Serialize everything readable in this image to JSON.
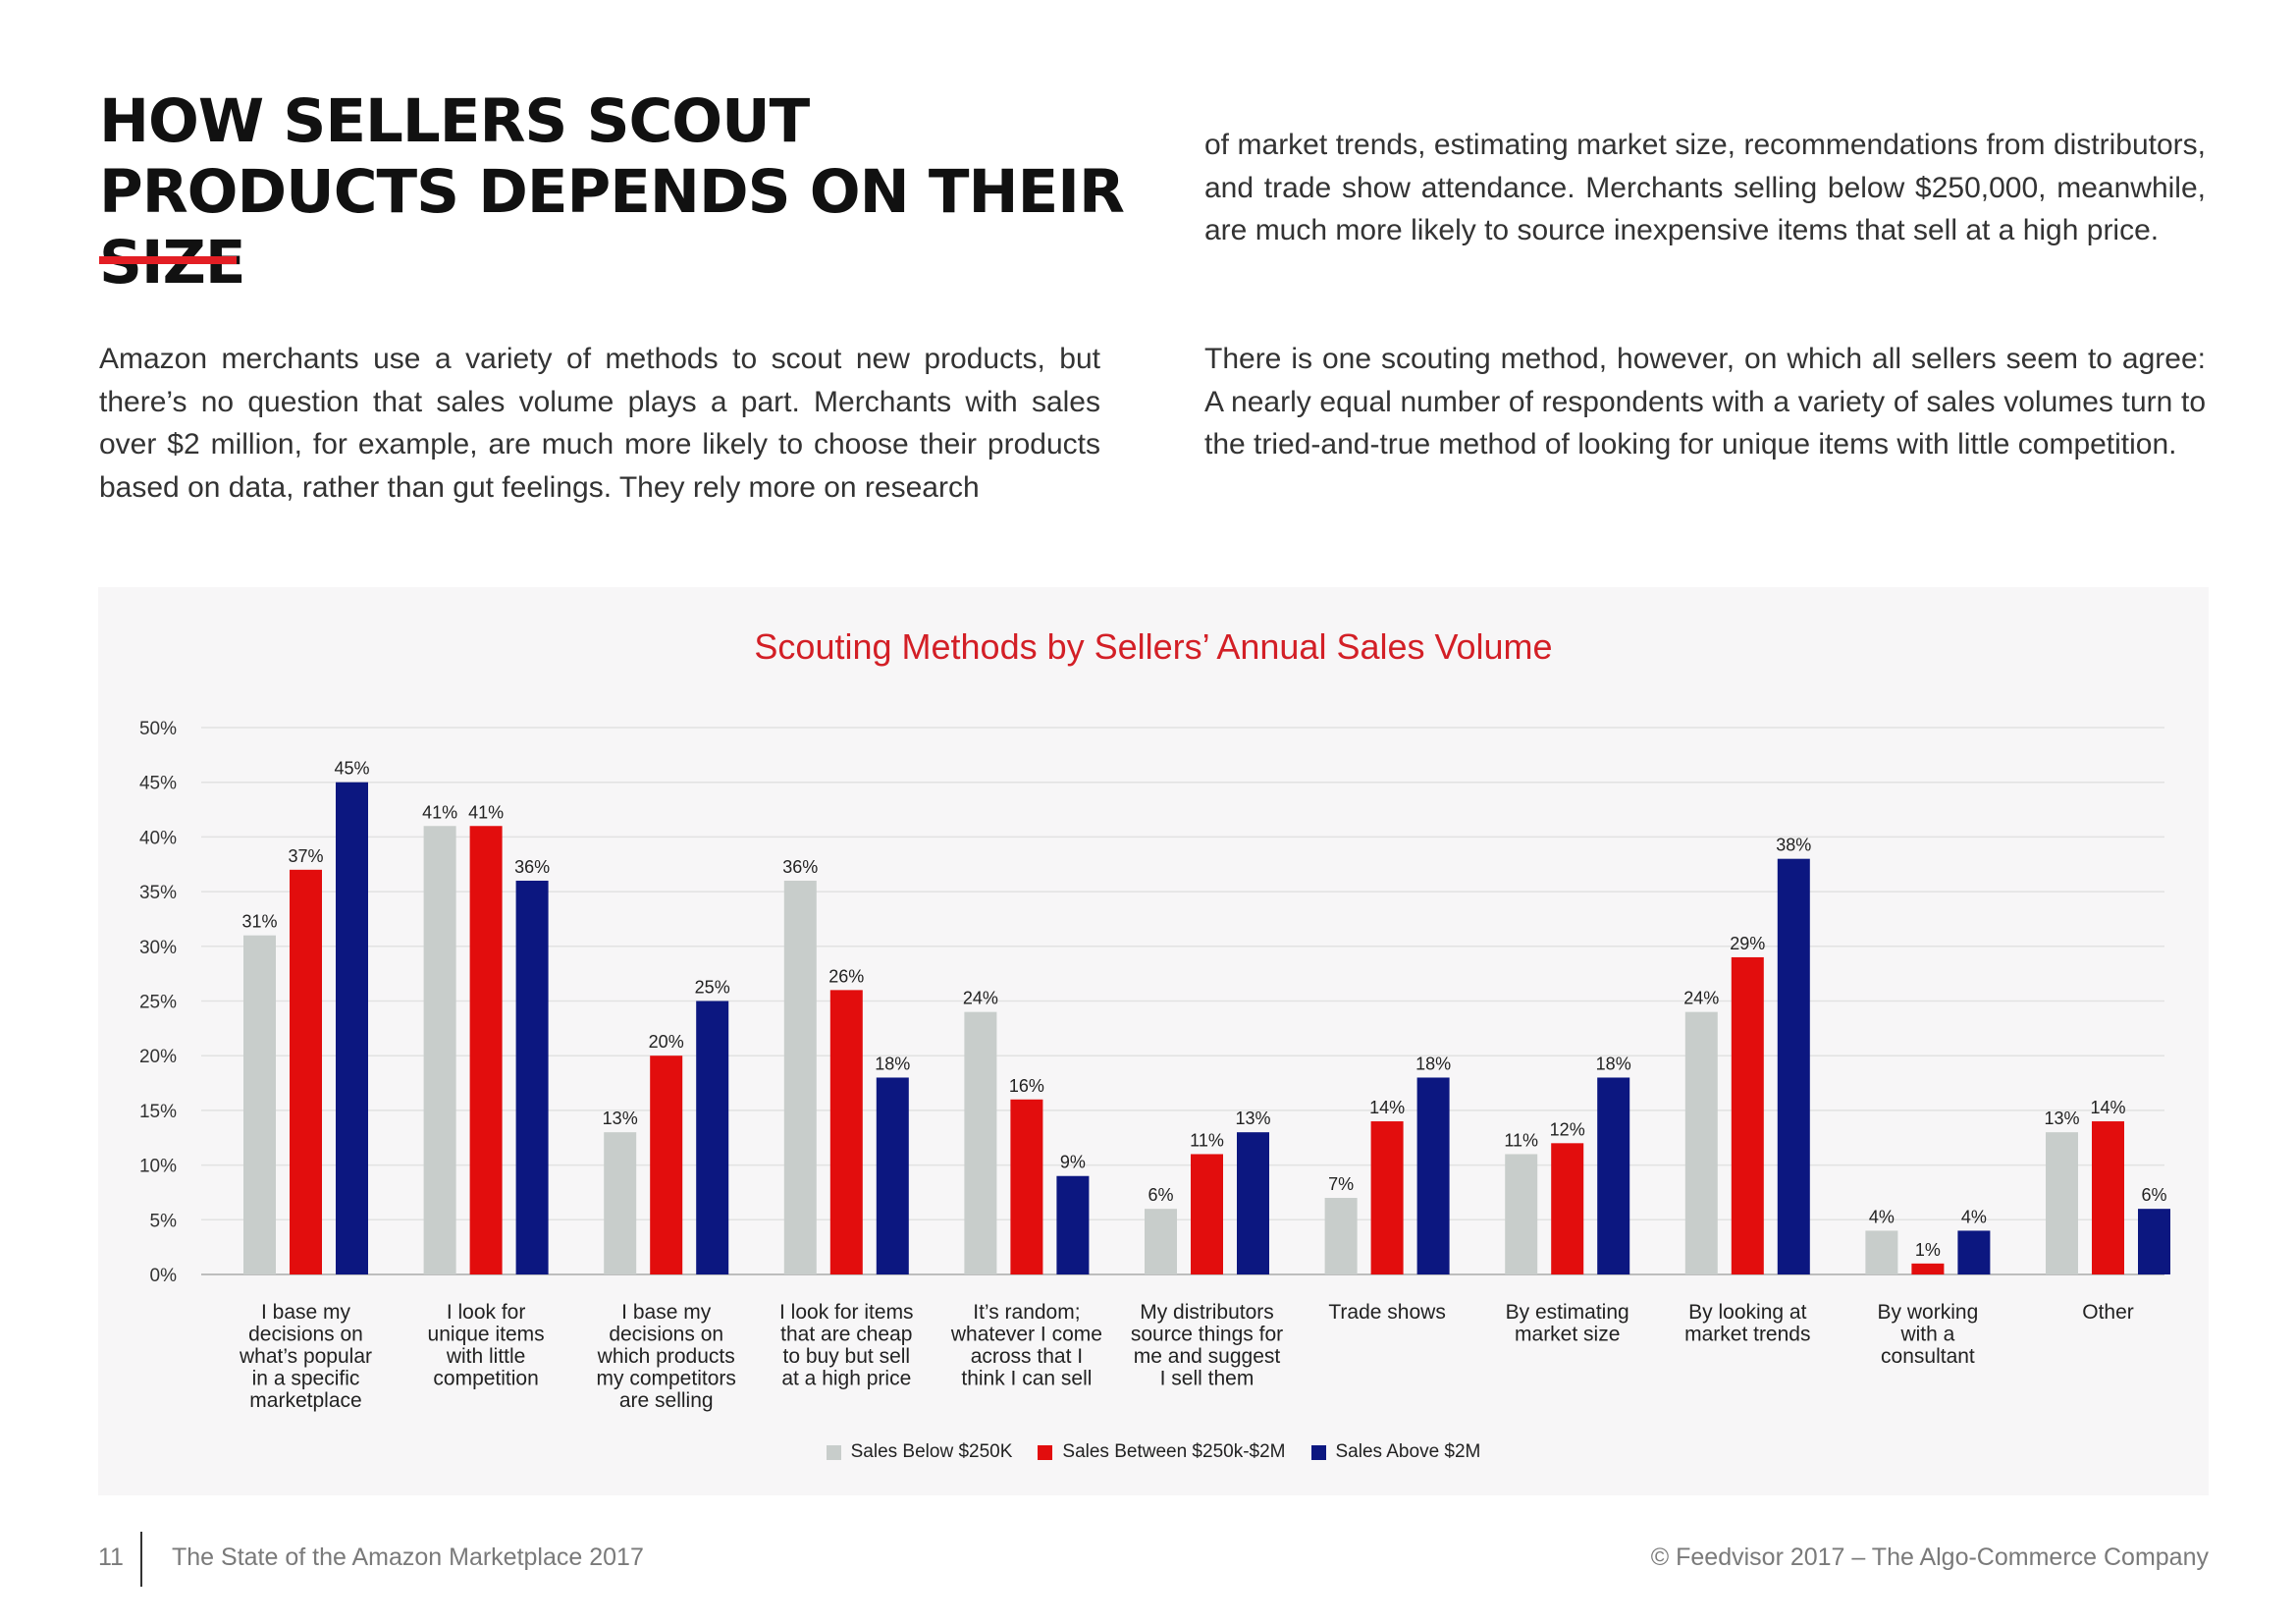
{
  "page": {
    "title": "HOW SELLERS SCOUT PRODUCTS DEPENDS ON THEIR SIZE",
    "accent_color": "#e31e24",
    "paragraph_left": "Amazon merchants use a variety of methods to scout new products, but there’s no question that sales volume plays a part. Merchants with sales over $2 million, for example, are much more likely to choose their products based on data, rather than gut feelings. They rely more on research",
    "paragraph_right_1": "of market trends, estimating market size, recommendations from distributors, and trade show attendance. Merchants selling below $250,000, meanwhile, are much more likely to source inexpensive items that sell at a high price.",
    "paragraph_right_2": "There is one scouting method, however, on which all sellers seem to agree: A nearly equal number of respondents with a variety of sales volumes turn to the tried-and-true method of looking for unique items with little competition."
  },
  "chart_data": {
    "type": "bar",
    "title": "Scouting Methods by Sellers’ Annual Sales Volume",
    "xlabel": "",
    "ylabel": "",
    "ylim": [
      0,
      50
    ],
    "yticks": [
      "0%",
      "5%",
      "10%",
      "15%",
      "20%",
      "25%",
      "30%",
      "35%",
      "40%",
      "45%",
      "50%"
    ],
    "grid": true,
    "legend_position": "bottom",
    "categories": [
      [
        "I base my",
        "decisions on",
        "what’s popular",
        "in a specific",
        "marketplace"
      ],
      [
        "I look for",
        "unique items",
        "with little",
        "competition"
      ],
      [
        "I base my",
        "decisions on",
        "which products",
        "my competitors",
        "are selling"
      ],
      [
        "I look for items",
        "that are cheap",
        "to buy but sell",
        "at a high price"
      ],
      [
        "It’s random;",
        "whatever I come",
        "across that I",
        "think I can sell"
      ],
      [
        "My distributors",
        "source things for",
        "me and suggest",
        "I sell them"
      ],
      [
        "Trade shows"
      ],
      [
        "By estimating",
        "market size"
      ],
      [
        "By looking at",
        "market trends"
      ],
      [
        "By working",
        "with a",
        "consultant"
      ],
      [
        "Other"
      ]
    ],
    "series": [
      {
        "name": "Sales Below $250K",
        "color": "#c8cdcb",
        "values": [
          31,
          41,
          13,
          36,
          24,
          6,
          7,
          11,
          24,
          4,
          13
        ]
      },
      {
        "name": "Sales Between $250k-$2M",
        "color": "#e20d0d",
        "values": [
          37,
          41,
          20,
          26,
          16,
          11,
          14,
          12,
          29,
          1,
          14
        ]
      },
      {
        "name": "Sales Above $2M",
        "color": "#0c1780",
        "values": [
          45,
          36,
          25,
          18,
          9,
          13,
          18,
          18,
          38,
          4,
          6
        ]
      }
    ]
  },
  "footer": {
    "page_number": "11",
    "left_text": "The State of the Amazon Marketplace 2017",
    "right_text": "© Feedvisor 2017 – The Algo-Commerce Company"
  }
}
